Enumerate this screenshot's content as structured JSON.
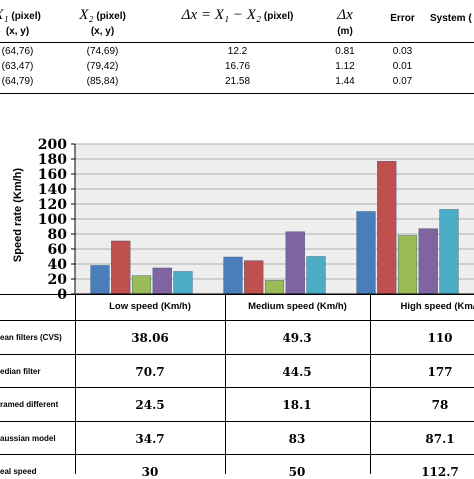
{
  "top_table": {
    "headers": {
      "x1_symbol": "X₁",
      "x1_unit": "(pixel)",
      "x2_symbol": "X₂",
      "x2_unit": "(pixel)",
      "dx_formula": "Δx = X₁ − X₂",
      "dx_unit": "(pixel)",
      "dxm_symbol": "Δx",
      "dxm_unit": "(m)",
      "error": "Error",
      "system": "System ("
    },
    "subheaders": {
      "x1": "(x, y)",
      "x2": "(x, y)"
    },
    "rows": [
      {
        "x1": "(64,76)",
        "x2": "(74,69)",
        "dx": "12.2",
        "dxm": "0.81",
        "error": "0.03"
      },
      {
        "x1": "(63,47)",
        "x2": "(79,42)",
        "dx": "16.76",
        "dxm": "1.12",
        "error": "0.01"
      },
      {
        "x1": "(64,79)",
        "x2": "(85,84)",
        "dx": "21.58",
        "dxm": "1.44",
        "error": "0.07"
      }
    ]
  },
  "chart_data": {
    "type": "bar",
    "categories": [
      "Low speed (Km/h)",
      "Medium speed (Km/h)",
      "High speed (Km/h)"
    ],
    "ylabel": "Speed rate (Km/h)",
    "ylim": [
      0,
      200
    ],
    "yticks": [
      "0",
      "20",
      "40",
      "60",
      "80",
      "100",
      "120",
      "140",
      "160",
      "180",
      "200"
    ],
    "grid": true,
    "series": [
      {
        "name": "ean filters (CVS)",
        "color": "#4a7ebb",
        "values": [
          38.06,
          49.3,
          110
        ],
        "labels": [
          "38.06",
          "49.3",
          "110"
        ]
      },
      {
        "name": "edian filter",
        "color": "#c0504d",
        "values": [
          70.7,
          44.5,
          177
        ],
        "labels": [
          "70.7",
          "44.5",
          "177"
        ]
      },
      {
        "name": "ramed different",
        "color": "#9bbb59",
        "values": [
          24.5,
          18.1,
          78
        ],
        "labels": [
          "24.5",
          "18.1",
          "78"
        ]
      },
      {
        "name": "aussian model",
        "color": "#8064a2",
        "values": [
          34.7,
          83,
          87.1
        ],
        "labels": [
          "34.7",
          "83",
          "87.1"
        ]
      },
      {
        "name": "eal speed",
        "color": "#4bacc6",
        "values": [
          30,
          50,
          112.7
        ],
        "labels": [
          "30",
          "50",
          "112.7"
        ]
      }
    ]
  }
}
